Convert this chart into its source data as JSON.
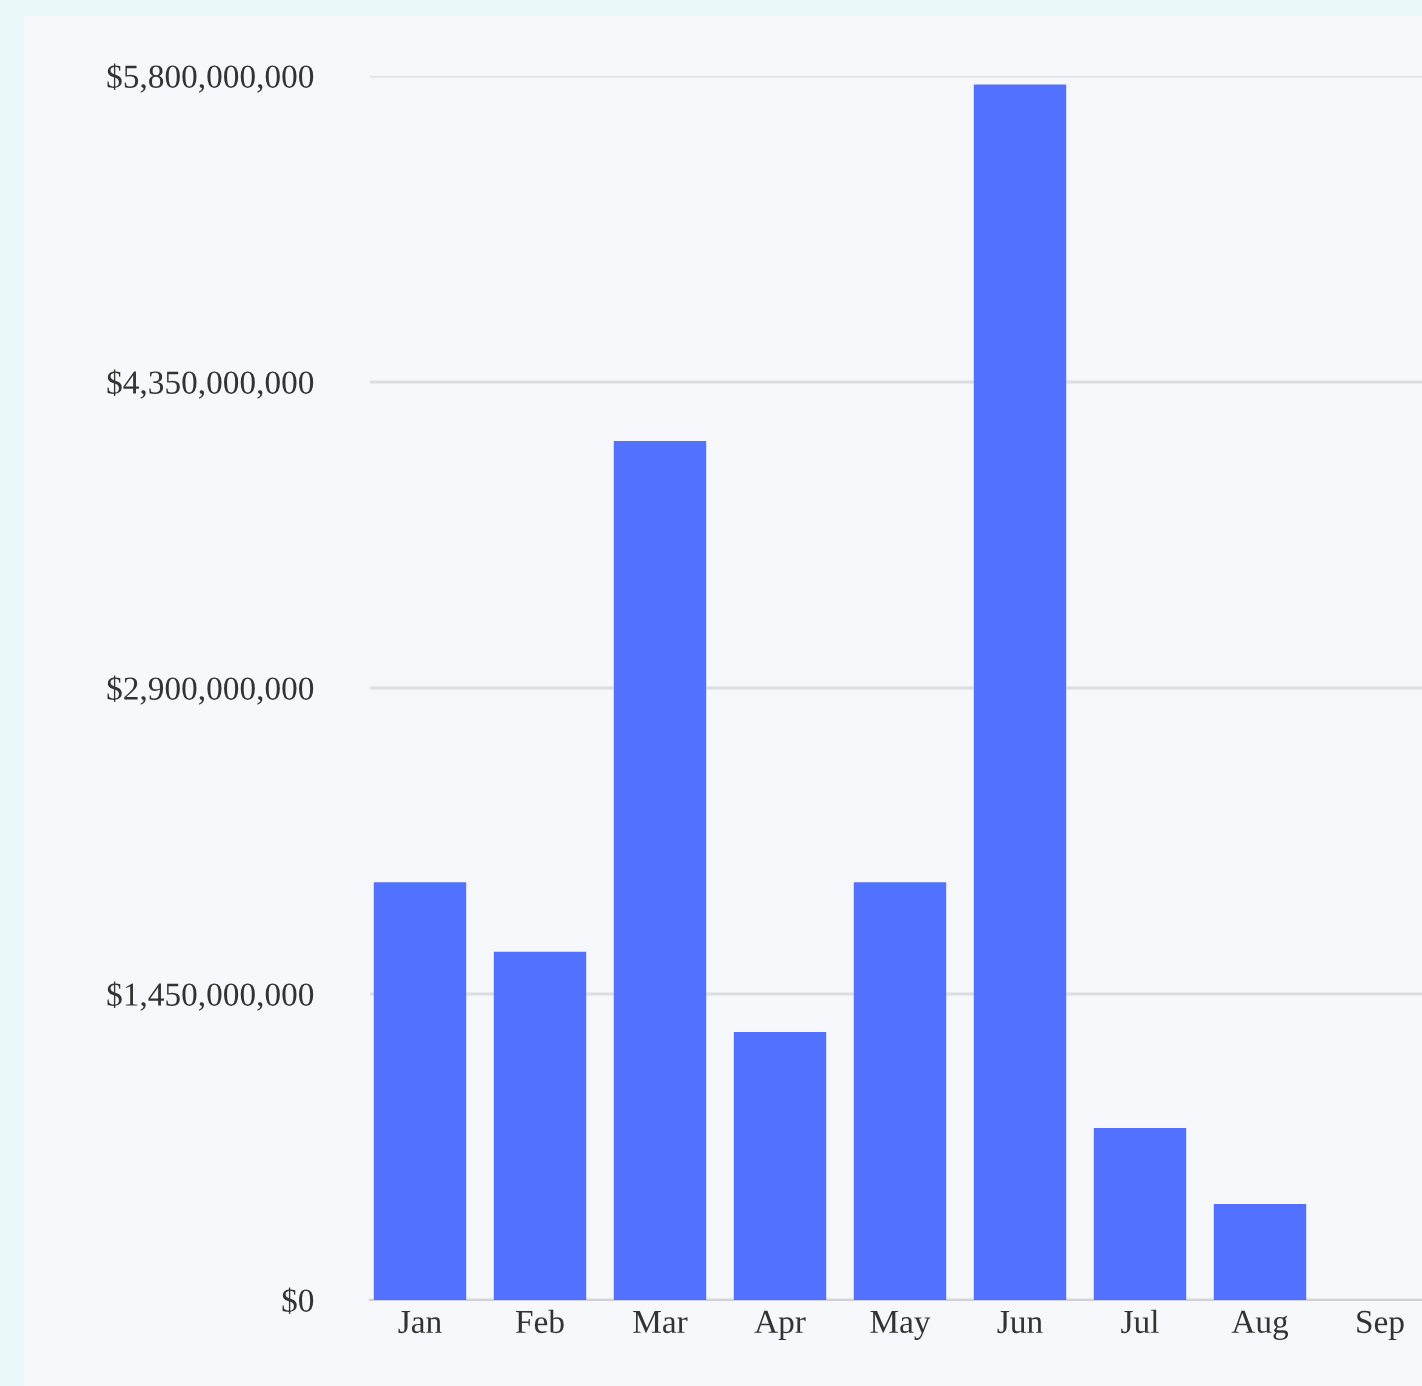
{
  "chart_data": {
    "type": "bar",
    "categories": [
      "Jan",
      "Feb",
      "Mar",
      "Apr",
      "May",
      "Jun",
      "Jul",
      "Aug",
      "Sep"
    ],
    "values": [
      1980000000,
      1650000000,
      4070000000,
      1270000000,
      1980000000,
      5760000000,
      815000000,
      455000000,
      null
    ],
    "color": "#5271ff",
    "ylim": [
      0,
      5800000000
    ],
    "yticks": [
      {
        "value": 0,
        "label": "$0"
      },
      {
        "value": 1450000000,
        "label": "$1,450,000,000"
      },
      {
        "value": 2900000000,
        "label": "$2,900,000,000"
      },
      {
        "value": 4350000000,
        "label": "$4,350,000,000"
      },
      {
        "value": 5800000000,
        "label": "$5,800,000,000"
      }
    ],
    "grid": "y",
    "legend": false
  }
}
